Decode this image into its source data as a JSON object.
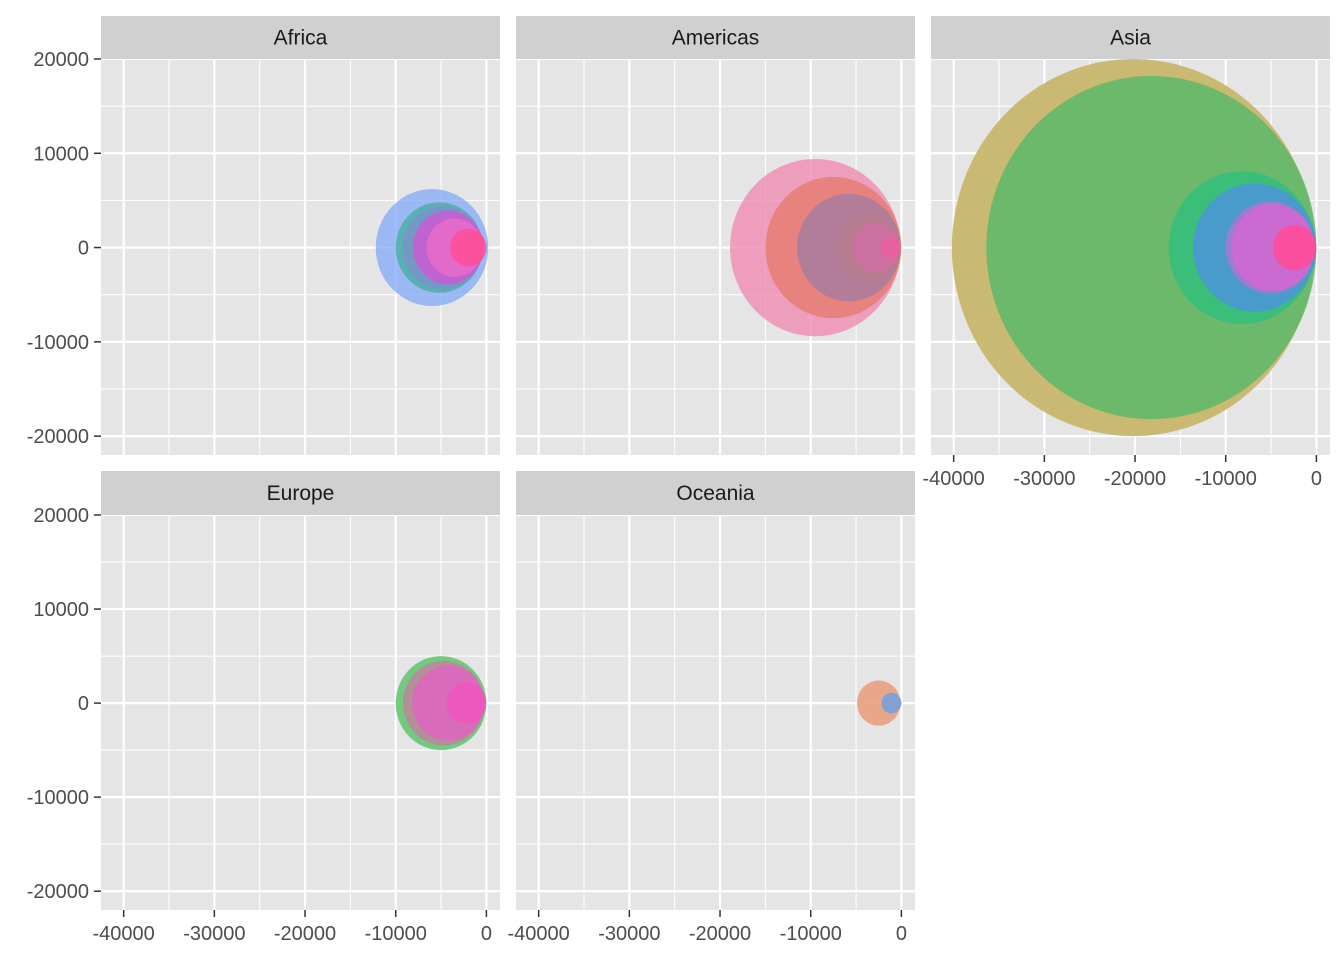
{
  "chart_data": {
    "type": "scatter",
    "encoding": "bubble",
    "facets": [
      {
        "panel": "Africa",
        "circles": [
          {
            "x": -6000,
            "radius": 6200,
            "color": "#80A8F5",
            "opacity": 0.75
          },
          {
            "x": -5200,
            "radius": 4800,
            "color": "#28A882",
            "opacity": 0.55
          },
          {
            "x": -4800,
            "radius": 4400,
            "color": "#8E7FD2",
            "opacity": 0.5
          },
          {
            "x": -4200,
            "radius": 3900,
            "color": "#DE4FD6",
            "opacity": 0.7
          },
          {
            "x": -3500,
            "radius": 3100,
            "color": "#F26BC8",
            "opacity": 0.7
          },
          {
            "x": -2000,
            "radius": 2000,
            "color": "#FF4D98",
            "opacity": 0.85
          }
        ]
      },
      {
        "panel": "Americas",
        "circles": [
          {
            "x": -9500,
            "radius": 9400,
            "color": "#F08CB3",
            "opacity": 0.8
          },
          {
            "x": -7500,
            "radius": 7500,
            "color": "#E57C74",
            "opacity": 0.85
          },
          {
            "x": -5800,
            "radius": 5700,
            "color": "#A77C9E",
            "opacity": 0.85
          },
          {
            "x": -3500,
            "radius": 3400,
            "color": "#B87C8C",
            "opacity": 0.7
          },
          {
            "x": -2800,
            "radius": 2600,
            "color": "#D66BA8",
            "opacity": 0.7
          },
          {
            "x": -1200,
            "radius": 1100,
            "color": "#F05CA0",
            "opacity": 0.8
          }
        ]
      },
      {
        "panel": "Asia",
        "circles": [
          {
            "x": -20200,
            "radius": 20000,
            "color": "#C7B66B",
            "opacity": 0.95
          },
          {
            "x": -18200,
            "radius": 18200,
            "color": "#5DB86A",
            "opacity": 0.85
          },
          {
            "x": -8200,
            "radius": 8100,
            "color": "#2DBF7D",
            "opacity": 0.8
          },
          {
            "x": -6800,
            "radius": 6800,
            "color": "#4B95D8",
            "opacity": 0.85
          },
          {
            "x": -5100,
            "radius": 4900,
            "color": "#B473D0",
            "opacity": 0.75
          },
          {
            "x": -4800,
            "radius": 4600,
            "color": "#E062D0",
            "opacity": 0.7
          },
          {
            "x": -2400,
            "radius": 2400,
            "color": "#FF4D98",
            "opacity": 0.9
          }
        ]
      },
      {
        "panel": "Europe",
        "circles": [
          {
            "x": -5000,
            "radius": 5000,
            "color": "#5DC56B",
            "opacity": 0.85
          },
          {
            "x": -4700,
            "radius": 4500,
            "color": "#C77CA0",
            "opacity": 0.75
          },
          {
            "x": -4200,
            "radius": 4000,
            "color": "#E65FC6",
            "opacity": 0.75
          },
          {
            "x": -2200,
            "radius": 2200,
            "color": "#F252C0",
            "opacity": 0.75
          }
        ]
      },
      {
        "panel": "Oceania",
        "circles": [
          {
            "x": -2500,
            "radius": 2400,
            "color": "#E8A07D",
            "opacity": 0.9
          },
          {
            "x": -1100,
            "radius": 1100,
            "color": "#7C9FD4",
            "opacity": 0.95
          }
        ]
      }
    ],
    "y_of_all_points": 0,
    "xlim": [
      -42500,
      1500
    ],
    "ylim": [
      -22000,
      20000
    ],
    "x_ticks": [
      -40000,
      -30000,
      -20000,
      -10000,
      0
    ],
    "y_ticks": [
      20000,
      10000,
      0,
      -10000,
      -20000
    ],
    "x_tick_labels": [
      "-40000",
      "-30000",
      "-20000",
      "-10000",
      "0"
    ],
    "y_tick_labels": [
      "20000",
      "10000",
      "0",
      "-10000",
      "-20000"
    ],
    "grid": true,
    "panel_background": "#E5E5E5",
    "strip_background": "#D0D0D0",
    "gridline_color": "#FFFFFF",
    "legend": "none"
  }
}
